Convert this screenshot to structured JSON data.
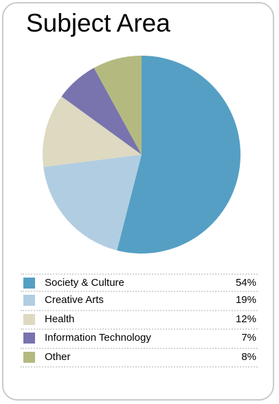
{
  "chart_data": {
    "type": "pie",
    "title": "Subject Area",
    "categories": [
      "Society & Culture",
      "Creative Arts",
      "Health",
      "Information Technology",
      "Other"
    ],
    "values": [
      54,
      19,
      12,
      7,
      8
    ],
    "value_labels": [
      "54%",
      "19%",
      "12%",
      "7%",
      "8%"
    ],
    "colors": [
      "#559fc4",
      "#b1cde1",
      "#ded9c1",
      "#7973ae",
      "#b4ba7f"
    ],
    "legend_position": "bottom"
  }
}
